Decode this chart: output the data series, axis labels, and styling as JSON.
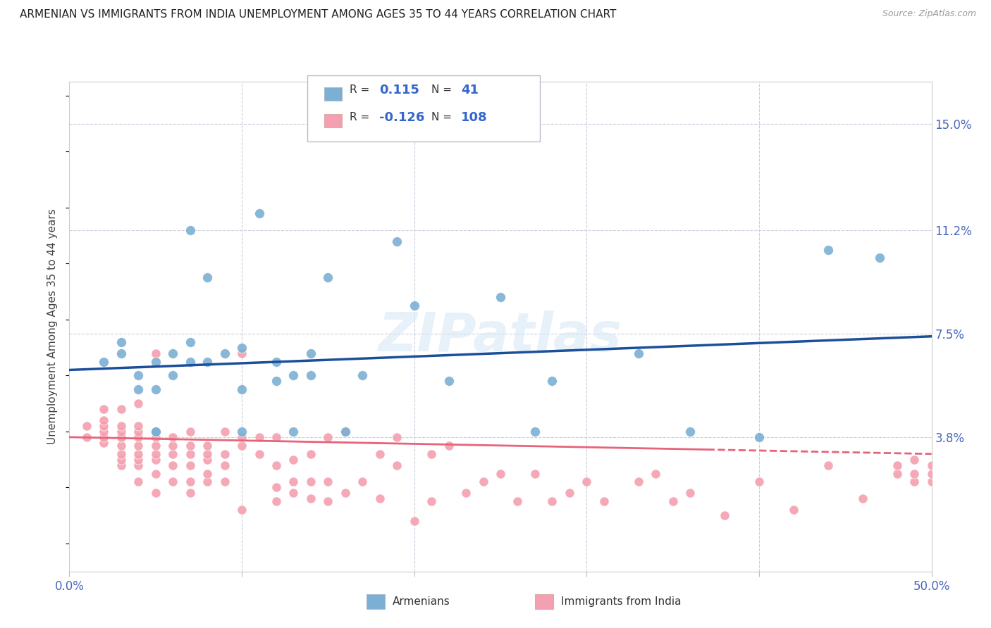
{
  "title": "ARMENIAN VS IMMIGRANTS FROM INDIA UNEMPLOYMENT AMONG AGES 35 TO 44 YEARS CORRELATION CHART",
  "source": "Source: ZipAtlas.com",
  "ylabel": "Unemployment Among Ages 35 to 44 years",
  "xlim": [
    0.0,
    0.5
  ],
  "ylim": [
    -0.01,
    0.165
  ],
  "ytick_vals": [
    0.038,
    0.075,
    0.112,
    0.15
  ],
  "ytick_labels": [
    "3.8%",
    "7.5%",
    "11.2%",
    "15.0%"
  ],
  "xtick_vals": [
    0.0,
    0.1,
    0.2,
    0.3,
    0.4,
    0.5
  ],
  "xtick_labels": [
    "0.0%",
    "",
    "",
    "",
    "",
    "50.0%"
  ],
  "armenian_color": "#7BAFD4",
  "india_color": "#F4A0B0",
  "blue_line_color": "#1B4F9A",
  "pink_line_color": "#E8637A",
  "r_armenian": 0.115,
  "n_armenian": 41,
  "r_india": -0.126,
  "n_india": 108,
  "watermark": "ZIPatlas",
  "background_color": "#FFFFFF",
  "arm_line_x0": 0.0,
  "arm_line_y0": 0.062,
  "arm_line_x1": 0.5,
  "arm_line_y1": 0.074,
  "ind_line_x0": 0.0,
  "ind_line_y0": 0.038,
  "ind_line_x1": 0.5,
  "ind_line_y1": 0.032,
  "ind_line_solid_end": 0.37,
  "armenians_scatter_x": [
    0.02,
    0.03,
    0.03,
    0.04,
    0.04,
    0.05,
    0.05,
    0.05,
    0.06,
    0.06,
    0.07,
    0.07,
    0.07,
    0.08,
    0.08,
    0.09,
    0.1,
    0.1,
    0.1,
    0.11,
    0.12,
    0.12,
    0.13,
    0.13,
    0.14,
    0.14,
    0.15,
    0.16,
    0.17,
    0.19,
    0.2,
    0.22,
    0.25,
    0.27,
    0.28,
    0.33,
    0.36,
    0.4,
    0.44,
    0.47,
    0.05
  ],
  "armenians_scatter_y": [
    0.065,
    0.068,
    0.072,
    0.055,
    0.06,
    0.04,
    0.055,
    0.065,
    0.06,
    0.068,
    0.065,
    0.072,
    0.112,
    0.095,
    0.065,
    0.068,
    0.04,
    0.055,
    0.07,
    0.118,
    0.058,
    0.065,
    0.06,
    0.04,
    0.06,
    0.068,
    0.095,
    0.04,
    0.06,
    0.108,
    0.085,
    0.058,
    0.088,
    0.04,
    0.058,
    0.068,
    0.04,
    0.038,
    0.105,
    0.102,
    0.04
  ],
  "india_scatter_x": [
    0.01,
    0.01,
    0.02,
    0.02,
    0.02,
    0.02,
    0.02,
    0.02,
    0.03,
    0.03,
    0.03,
    0.03,
    0.03,
    0.03,
    0.03,
    0.03,
    0.03,
    0.04,
    0.04,
    0.04,
    0.04,
    0.04,
    0.04,
    0.04,
    0.04,
    0.04,
    0.05,
    0.05,
    0.05,
    0.05,
    0.05,
    0.05,
    0.05,
    0.06,
    0.06,
    0.06,
    0.06,
    0.06,
    0.07,
    0.07,
    0.07,
    0.07,
    0.07,
    0.07,
    0.08,
    0.08,
    0.08,
    0.08,
    0.08,
    0.09,
    0.09,
    0.09,
    0.09,
    0.1,
    0.1,
    0.1,
    0.1,
    0.11,
    0.11,
    0.12,
    0.12,
    0.12,
    0.12,
    0.13,
    0.13,
    0.13,
    0.14,
    0.14,
    0.14,
    0.15,
    0.15,
    0.15,
    0.16,
    0.16,
    0.17,
    0.18,
    0.18,
    0.19,
    0.19,
    0.2,
    0.21,
    0.21,
    0.22,
    0.23,
    0.24,
    0.25,
    0.26,
    0.27,
    0.28,
    0.29,
    0.3,
    0.31,
    0.33,
    0.34,
    0.35,
    0.36,
    0.38,
    0.4,
    0.42,
    0.44,
    0.46,
    0.48,
    0.48,
    0.49,
    0.49,
    0.49,
    0.5,
    0.5,
    0.5
  ],
  "india_scatter_y": [
    0.038,
    0.042,
    0.036,
    0.038,
    0.04,
    0.042,
    0.044,
    0.048,
    0.028,
    0.03,
    0.032,
    0.035,
    0.038,
    0.038,
    0.04,
    0.042,
    0.048,
    0.022,
    0.028,
    0.03,
    0.032,
    0.035,
    0.038,
    0.04,
    0.042,
    0.05,
    0.018,
    0.025,
    0.03,
    0.032,
    0.035,
    0.038,
    0.068,
    0.022,
    0.028,
    0.032,
    0.035,
    0.038,
    0.018,
    0.022,
    0.028,
    0.032,
    0.035,
    0.04,
    0.022,
    0.025,
    0.03,
    0.032,
    0.035,
    0.022,
    0.028,
    0.032,
    0.04,
    0.035,
    0.038,
    0.012,
    0.068,
    0.032,
    0.038,
    0.015,
    0.02,
    0.028,
    0.038,
    0.018,
    0.022,
    0.03,
    0.016,
    0.022,
    0.032,
    0.015,
    0.022,
    0.038,
    0.018,
    0.04,
    0.022,
    0.016,
    0.032,
    0.028,
    0.038,
    0.008,
    0.015,
    0.032,
    0.035,
    0.018,
    0.022,
    0.025,
    0.015,
    0.025,
    0.015,
    0.018,
    0.022,
    0.015,
    0.022,
    0.025,
    0.015,
    0.018,
    0.01,
    0.022,
    0.012,
    0.028,
    0.016,
    0.025,
    0.028,
    0.022,
    0.025,
    0.03,
    0.022,
    0.025,
    0.028
  ]
}
